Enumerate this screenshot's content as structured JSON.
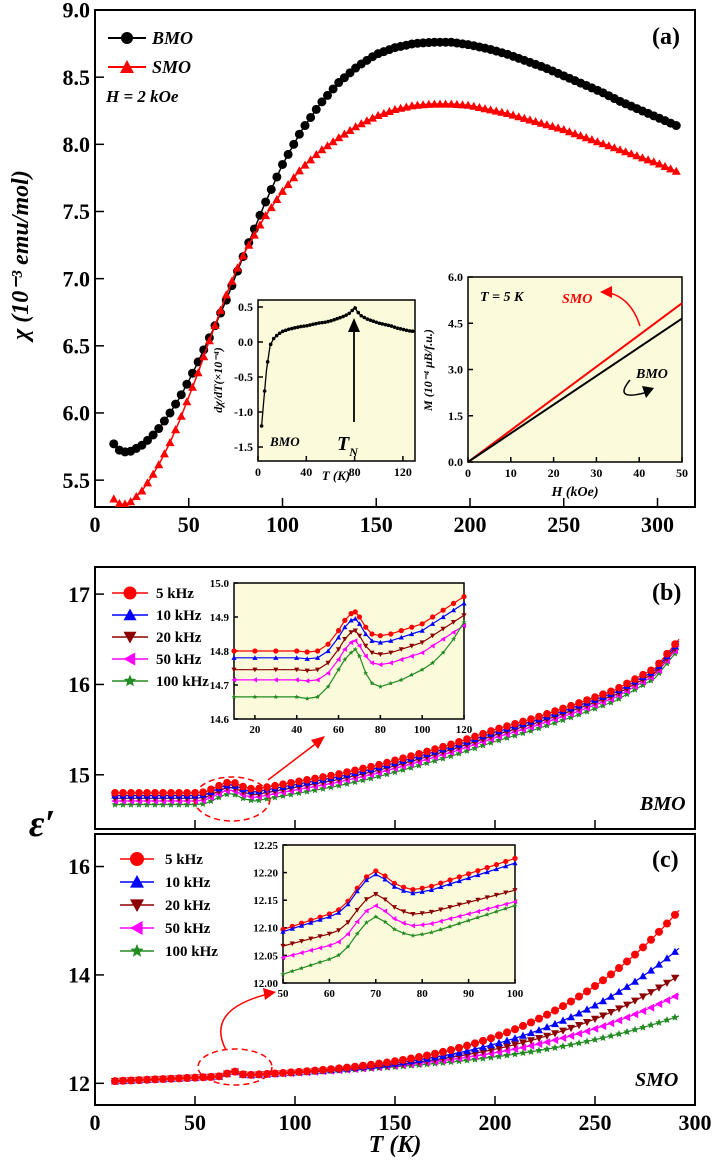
{
  "panels": {
    "a": {
      "label": "(a)",
      "type": "scatter",
      "ylabel": "χ (10⁻³ emu/mol)",
      "xlim": [
        0,
        320
      ],
      "ylim": [
        5.3,
        9.0
      ],
      "xticks": [
        "0",
        "50",
        "100",
        "150",
        "200",
        "250",
        "300"
      ],
      "yticks": [
        "5.5",
        "6.0",
        "6.5",
        "7.0",
        "7.5",
        "8.0",
        "8.5",
        "9.0"
      ],
      "annotation": "H = 2 kOe",
      "colors": {
        "BMO": "#000000",
        "SMO": "#ff0000",
        "inset_bg": "#fbfbdc"
      },
      "series": [
        {
          "name": "BMO",
          "marker": "circle",
          "color": "#000000",
          "x": [
            10,
            12,
            15,
            18,
            20,
            25,
            30,
            35,
            40,
            45,
            50,
            55,
            60,
            65,
            70,
            75,
            80,
            90,
            100,
            110,
            120,
            130,
            140,
            150,
            160,
            170,
            180,
            190,
            200,
            210,
            220,
            230,
            240,
            250,
            260,
            270,
            280,
            290,
            300,
            310
          ],
          "y": [
            5.77,
            5.73,
            5.71,
            5.71,
            5.72,
            5.76,
            5.82,
            5.9,
            6.0,
            6.11,
            6.24,
            6.38,
            6.53,
            6.68,
            6.84,
            7.02,
            7.2,
            7.54,
            7.85,
            8.1,
            8.3,
            8.46,
            8.58,
            8.67,
            8.72,
            8.75,
            8.76,
            8.76,
            8.74,
            8.71,
            8.67,
            8.62,
            8.57,
            8.51,
            8.45,
            8.39,
            8.32,
            8.26,
            8.2,
            8.14
          ]
        },
        {
          "name": "SMO",
          "marker": "triangle-up",
          "color": "#ff0000",
          "x": [
            10,
            12,
            15,
            18,
            20,
            25,
            30,
            35,
            40,
            45,
            50,
            55,
            60,
            65,
            70,
            75,
            80,
            90,
            100,
            110,
            120,
            130,
            140,
            150,
            160,
            170,
            180,
            190,
            200,
            210,
            220,
            230,
            240,
            250,
            260,
            270,
            280,
            290,
            300,
            310
          ],
          "y": [
            5.36,
            5.33,
            5.32,
            5.33,
            5.35,
            5.42,
            5.52,
            5.64,
            5.78,
            5.94,
            6.12,
            6.3,
            6.5,
            6.69,
            6.88,
            7.05,
            7.2,
            7.45,
            7.65,
            7.82,
            7.95,
            8.05,
            8.14,
            8.21,
            8.26,
            8.29,
            8.3,
            8.3,
            8.29,
            8.26,
            8.23,
            8.19,
            8.15,
            8.11,
            8.06,
            8.01,
            7.96,
            7.91,
            7.86,
            7.8
          ]
        }
      ],
      "insets": [
        {
          "type": "line",
          "xlabel": "T (K)",
          "ylabel": "dχ/dT(×10⁻⁴)",
          "xlim": [
            0,
            130
          ],
          "ylim": [
            -1.7,
            0.6
          ],
          "xticks": [
            "0",
            "40",
            "80",
            "120"
          ],
          "yticks": [
            "-1.5",
            "-1.0",
            "-0.5",
            "0.0",
            "0.5"
          ],
          "annotation": "BMO",
          "marker_label": "T_N",
          "series": [
            {
              "name": "BMO",
              "color": "#000000",
              "x": [
                3,
                5,
                7,
                10,
                13,
                16,
                20,
                25,
                30,
                35,
                40,
                45,
                50,
                55,
                60,
                65,
                70,
                75,
                78,
                80,
                82,
                85,
                90,
                95,
                100,
                105,
                110,
                115,
                120,
                125,
                130
              ],
              "y": [
                -1.2,
                -0.8,
                -0.4,
                -0.05,
                0.05,
                0.1,
                0.15,
                0.18,
                0.2,
                0.22,
                0.23,
                0.25,
                0.27,
                0.28,
                0.3,
                0.33,
                0.36,
                0.4,
                0.45,
                0.5,
                0.44,
                0.38,
                0.33,
                0.3,
                0.27,
                0.25,
                0.23,
                0.2,
                0.18,
                0.16,
                0.15
              ]
            }
          ]
        },
        {
          "type": "line",
          "xlabel": "H (kOe)",
          "ylabel": "M (10⁻⁴ μB/f.u.)",
          "xlim": [
            0,
            50
          ],
          "ylim": [
            0,
            6
          ],
          "xticks": [
            "0",
            "10",
            "20",
            "30",
            "40",
            "50"
          ],
          "yticks": [
            "0.0",
            "1.5",
            "3.0",
            "4.5",
            "6.0"
          ],
          "annotation": "T = 5 K",
          "series": [
            {
              "name": "SMO",
              "color": "#ff0000",
              "x": [
                0,
                50
              ],
              "y": [
                0,
                5.15
              ]
            },
            {
              "name": "BMO",
              "color": "#000000",
              "x": [
                0,
                50
              ],
              "y": [
                0,
                4.65
              ]
            }
          ]
        }
      ]
    },
    "b": {
      "label": "(b)",
      "type": "line",
      "xlim": [
        0,
        300
      ],
      "ylim": [
        14.4,
        17.3
      ],
      "yticks": [
        "15",
        "16",
        "17"
      ],
      "annotation": "BMO",
      "series": [
        {
          "name": "5 kHz",
          "color": "#ff0000",
          "marker": "circle",
          "offset": 0.0
        },
        {
          "name": "10 kHz",
          "color": "#0000ff",
          "marker": "triangle-up",
          "offset": -0.03
        },
        {
          "name": "20 kHz",
          "color": "#8b0000",
          "marker": "triangle-down",
          "offset": -0.06
        },
        {
          "name": "50 kHz",
          "color": "#ff00ff",
          "marker": "triangle-left",
          "offset": -0.09
        },
        {
          "name": "100 kHz",
          "color": "#228b22",
          "marker": "star",
          "offset": -0.13
        }
      ],
      "base_curve": {
        "x": [
          10,
          20,
          30,
          40,
          50,
          55,
          60,
          65,
          68,
          70,
          75,
          80,
          85,
          90,
          100,
          120,
          140,
          160,
          180,
          200,
          220,
          240,
          260,
          280,
          292
        ],
        "y": [
          14.8,
          14.8,
          14.8,
          14.8,
          14.8,
          14.81,
          14.86,
          14.91,
          14.92,
          14.91,
          14.86,
          14.84,
          14.86,
          14.88,
          14.92,
          15.0,
          15.1,
          15.22,
          15.35,
          15.5,
          15.63,
          15.78,
          15.94,
          16.18,
          16.5
        ]
      },
      "inset": {
        "xlim": [
          10,
          120
        ],
        "ylim": [
          14.6,
          15.0
        ],
        "xticks": [
          "20",
          "40",
          "60",
          "80",
          "100",
          "120"
        ],
        "yticks": [
          "14.6",
          "14.7",
          "14.8",
          "14.9",
          "15.0"
        ],
        "x": [
          10,
          20,
          30,
          40,
          45,
          50,
          55,
          60,
          63,
          66,
          68,
          70,
          73,
          76,
          80,
          85,
          90,
          95,
          100,
          105,
          110,
          115,
          120
        ],
        "offsets": [
          14.8,
          14.78,
          14.745,
          14.715,
          14.665
        ],
        "shape": [
          0,
          0,
          0,
          0,
          -0.003,
          0,
          0.02,
          0.06,
          0.09,
          0.11,
          0.115,
          0.1,
          0.07,
          0.05,
          0.045,
          0.05,
          0.06,
          0.07,
          0.08,
          0.1,
          0.12,
          0.14,
          0.16
        ],
        "shape100k": [
          0,
          0,
          0,
          0,
          -0.005,
          0,
          0.03,
          0.08,
          0.11,
          0.13,
          0.14,
          0.12,
          0.07,
          0.04,
          0.03,
          0.04,
          0.05,
          0.065,
          0.08,
          0.1,
          0.13,
          0.17,
          0.22
        ]
      }
    },
    "c": {
      "label": "(c)",
      "type": "line",
      "xlabel": "T (K)",
      "shared_ylabel": "ε′",
      "xlim": [
        0,
        300
      ],
      "ylim": [
        11.6,
        16.6
      ],
      "xticks": [
        "0",
        "50",
        "100",
        "150",
        "200",
        "250",
        "300"
      ],
      "yticks": [
        "12",
        "14",
        "16"
      ],
      "annotation": "SMO",
      "series": [
        {
          "name": "5 kHz",
          "color": "#ff0000",
          "marker": "circle",
          "end": 15.3
        },
        {
          "name": "10 kHz",
          "color": "#0000ff",
          "marker": "triangle-up",
          "end": 14.6
        },
        {
          "name": "20 kHz",
          "color": "#8b0000",
          "marker": "triangle-down",
          "end": 14.1
        },
        {
          "name": "50 kHz",
          "color": "#ff00ff",
          "marker": "triangle-left",
          "end": 13.75
        },
        {
          "name": "100 kHz",
          "color": "#228b22",
          "marker": "star",
          "end": 13.35
        }
      ],
      "inset": {
        "xlim": [
          50,
          100
        ],
        "ylim": [
          12.0,
          12.25
        ],
        "xticks": [
          "50",
          "60",
          "70",
          "80",
          "90",
          "100"
        ],
        "yticks": [
          "12.00",
          "12.05",
          "12.10",
          "12.15",
          "12.20",
          "12.25"
        ],
        "x": [
          50,
          52,
          54,
          56,
          58,
          60,
          62,
          64,
          66,
          68,
          70,
          72,
          74,
          76,
          78,
          80,
          82,
          84,
          86,
          88,
          90,
          92,
          94,
          96,
          98,
          100
        ],
        "offsets": [
          12.097,
          12.093,
          12.067,
          12.046,
          12.016
        ],
        "slopes": [
          0.0028,
          0.0027,
          0.0022,
          0.0022,
          0.0027
        ],
        "peak": [
          0,
          0,
          0,
          0,
          0,
          0,
          0.002,
          0.012,
          0.03,
          0.045,
          0.05,
          0.038,
          0.022,
          0.012,
          0.005,
          0.002,
          0,
          0,
          0,
          0,
          0,
          0,
          0,
          0,
          0,
          0
        ]
      }
    }
  }
}
